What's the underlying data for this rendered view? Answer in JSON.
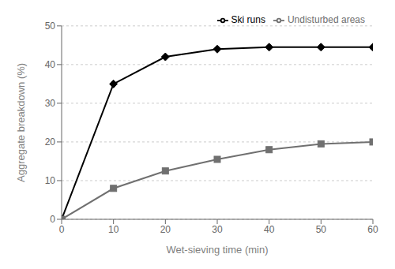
{
  "chart_data": {
    "type": "line",
    "x": [
      0,
      10,
      20,
      30,
      40,
      50,
      60
    ],
    "series": [
      {
        "name": "Ski runs",
        "color": "#000000",
        "marker": "diamond",
        "values": [
          0,
          35,
          42,
          44,
          44.5,
          44.5,
          44.5
        ]
      },
      {
        "name": "Undisturbed areas",
        "color": "#707070",
        "marker": "square",
        "values": [
          0,
          8,
          12.5,
          15.5,
          18,
          19.5,
          20
        ]
      }
    ],
    "xlabel": "Wet-sieving time (min)",
    "ylabel": "Aggregate breakdown (%)",
    "xlim": [
      0,
      60
    ],
    "ylim": [
      0,
      50
    ],
    "xticks": [
      0,
      10,
      20,
      30,
      40,
      50,
      60
    ],
    "yticks": [
      0,
      10,
      20,
      30,
      40,
      50
    ],
    "grid": "y",
    "legend": "upper right"
  }
}
